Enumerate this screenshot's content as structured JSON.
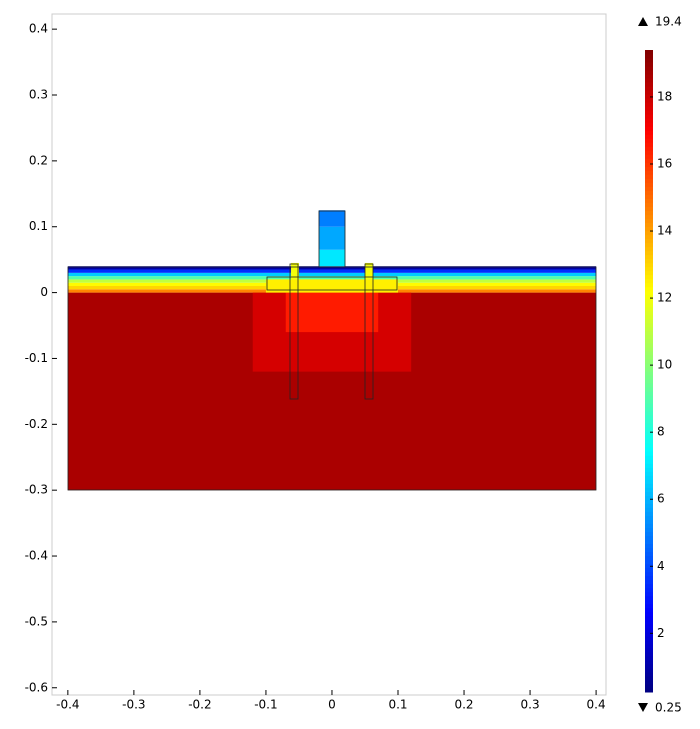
{
  "chart_data": {
    "type": "surface",
    "xlim": [
      -0.424,
      0.415
    ],
    "ylim": [
      -0.611,
      0.423
    ],
    "xticks": [
      -0.4,
      -0.3,
      -0.2,
      -0.1,
      0,
      0.1,
      0.2,
      0.3,
      0.4
    ],
    "yticks": [
      0.4,
      0.3,
      0.2,
      0.1,
      0,
      -0.1,
      -0.2,
      -0.3,
      -0.4,
      -0.5,
      -0.6
    ],
    "clim": [
      0.25,
      19.4
    ],
    "cticks": [
      2,
      4,
      6,
      8,
      10,
      12,
      14,
      16,
      18
    ],
    "cmax_label": "19.4",
    "cmin_label": "0.25",
    "colormap": "jet",
    "cells": [
      {
        "x": [
          -0.4,
          0.4
        ],
        "y": [
          -0.3,
          0
        ],
        "value": 18.6
      },
      {
        "x": [
          -0.12,
          0.12
        ],
        "y": [
          -0.12,
          0
        ],
        "value": 17.8
      },
      {
        "x": [
          -0.07,
          0.07
        ],
        "y": [
          -0.06,
          0
        ],
        "value": 16.5
      },
      {
        "x": [
          -0.4,
          0.4
        ],
        "y": [
          0,
          0.005
        ],
        "value": 14.5
      },
      {
        "x": [
          -0.4,
          0.4
        ],
        "y": [
          0.005,
          0.01
        ],
        "value": 13
      },
      {
        "x": [
          -0.4,
          0.4
        ],
        "y": [
          0.01,
          0.015
        ],
        "value": 12.3
      },
      {
        "x": [
          -0.4,
          0.4
        ],
        "y": [
          0.015,
          0.02
        ],
        "value": 11
      },
      {
        "x": [
          -0.4,
          0.4
        ],
        "y": [
          0.02,
          0.025
        ],
        "value": 9
      },
      {
        "x": [
          -0.4,
          0.4
        ],
        "y": [
          0.025,
          0.03
        ],
        "value": 6.5
      },
      {
        "x": [
          -0.4,
          0.4
        ],
        "y": [
          0.03,
          0.035
        ],
        "value": 3.5
      },
      {
        "x": [
          -0.4,
          0.4
        ],
        "y": [
          0.035,
          0.04
        ],
        "value": 1
      },
      {
        "x": [
          -0.1,
          0.1
        ],
        "y": [
          0,
          0.02
        ],
        "value": 12.5
      },
      {
        "x": [
          -0.02,
          0.02
        ],
        "y": [
          0.04,
          0.065
        ],
        "value": 7
      },
      {
        "x": [
          -0.02,
          0.02
        ],
        "y": [
          0.065,
          0.1
        ],
        "value": 5.8
      },
      {
        "x": [
          -0.02,
          0.02
        ],
        "y": [
          0.1,
          0.125
        ],
        "value": 5
      },
      {
        "x": [
          -0.062,
          -0.05
        ],
        "y": [
          0.02,
          0.045
        ],
        "value": 12
      },
      {
        "x": [
          0.05,
          0.062
        ],
        "y": [
          0.02,
          0.045
        ],
        "value": 12
      }
    ]
  }
}
